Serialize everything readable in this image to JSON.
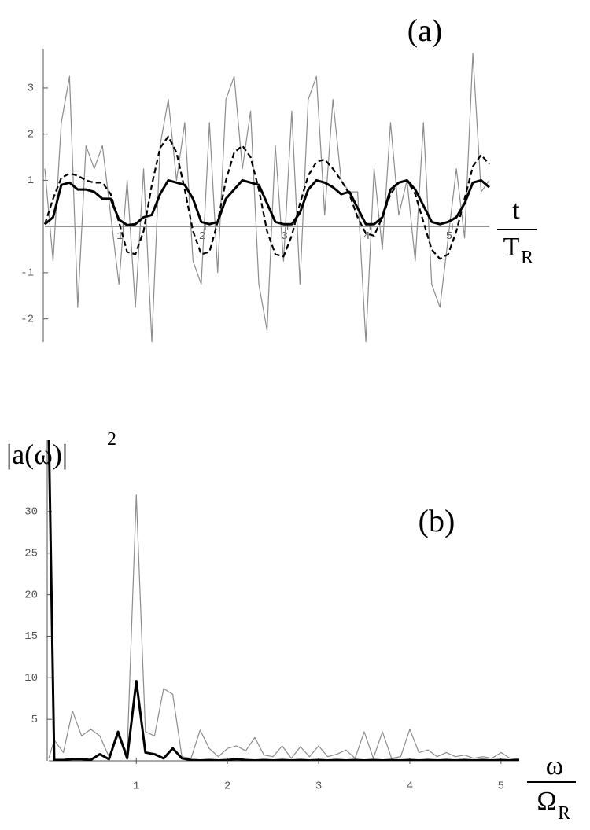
{
  "chart_data": [
    {
      "type": "line",
      "annotation": "(a)",
      "xlabel_top": "t",
      "xlabel_bottom": "T",
      "xlabel_sub": "R",
      "xlim": [
        0.05,
        5.45
      ],
      "ylim": [
        -2.5,
        3.85
      ],
      "xticks": [
        1,
        2,
        3,
        4,
        5
      ],
      "yticks": [
        -2,
        -1,
        1,
        2,
        3
      ],
      "grid": false,
      "x": [
        0.05,
        0.15,
        0.25,
        0.35,
        0.45,
        0.55,
        0.65,
        0.75,
        0.85,
        0.95,
        1.05,
        1.15,
        1.25,
        1.35,
        1.45,
        1.55,
        1.65,
        1.75,
        1.85,
        1.95,
        2.05,
        2.15,
        2.25,
        2.35,
        2.45,
        2.55,
        2.65,
        2.75,
        2.85,
        2.95,
        3.05,
        3.15,
        3.25,
        3.35,
        3.45,
        3.55,
        3.65,
        3.75,
        3.85,
        3.95,
        4.05,
        4.15,
        4.25,
        4.35,
        4.45,
        4.55,
        4.65,
        4.75,
        4.85,
        4.95,
        5.05,
        5.15,
        5.25,
        5.35,
        5.45
      ],
      "series": [
        {
          "color": "#8c8c8c",
          "width": 1.2,
          "style": "solid",
          "values": [
            1.25,
            -0.75,
            2.25,
            3.25,
            -1.75,
            1.75,
            1.25,
            1.75,
            0.25,
            -1.25,
            1.0,
            -1.75,
            1.25,
            -2.5,
            1.75,
            2.75,
            1.0,
            2.25,
            -0.75,
            -1.25,
            2.25,
            -1.0,
            2.75,
            3.25,
            1.25,
            2.5,
            -1.25,
            -2.25,
            1.75,
            -0.75,
            2.5,
            -1.25,
            2.75,
            3.25,
            0.25,
            2.75,
            1.0,
            0.75,
            0.75,
            -2.5,
            1.25,
            -0.5,
            2.25,
            0.25,
            1.0,
            -0.75,
            2.25,
            -1.25,
            -1.75,
            -0.25,
            1.25,
            -0.25,
            3.75,
            0.75,
            1.0
          ]
        },
        {
          "color": "#000000",
          "width": 2.2,
          "style": "dashed",
          "values": [
            0.05,
            0.6,
            1.05,
            1.15,
            1.1,
            1.0,
            0.95,
            0.95,
            0.7,
            0.1,
            -0.55,
            -0.6,
            -0.1,
            0.9,
            1.7,
            1.95,
            1.6,
            0.8,
            -0.1,
            -0.6,
            -0.55,
            0.1,
            1.0,
            1.6,
            1.75,
            1.5,
            0.8,
            -0.1,
            -0.6,
            -0.65,
            -0.2,
            0.5,
            1.1,
            1.4,
            1.45,
            1.25,
            1.0,
            0.7,
            0.2,
            -0.15,
            -0.2,
            0.2,
            0.7,
            0.95,
            1.0,
            0.7,
            0.1,
            -0.5,
            -0.7,
            -0.6,
            -0.1,
            0.6,
            1.3,
            1.55,
            1.35
          ]
        },
        {
          "color": "#000000",
          "width": 3,
          "style": "solid",
          "values": [
            0.05,
            0.2,
            0.9,
            0.95,
            0.8,
            0.8,
            0.75,
            0.6,
            0.6,
            0.15,
            0.03,
            0.05,
            0.2,
            0.25,
            0.7,
            1.0,
            0.95,
            0.9,
            0.6,
            0.1,
            0.05,
            0.1,
            0.6,
            0.8,
            1.0,
            0.95,
            0.9,
            0.5,
            0.1,
            0.05,
            0.05,
            0.3,
            0.8,
            1.0,
            0.95,
            0.85,
            0.7,
            0.75,
            0.4,
            0.05,
            0.05,
            0.2,
            0.8,
            0.95,
            1.0,
            0.8,
            0.45,
            0.1,
            0.05,
            0.1,
            0.2,
            0.5,
            0.95,
            1.0,
            0.85
          ]
        }
      ]
    },
    {
      "type": "line",
      "annotation": "(b)",
      "ylabel": "|a(ω)|",
      "ylabel_sup": "2",
      "xlabel_top": "ω",
      "xlabel_bottom": "Ω",
      "xlabel_sub": "R",
      "xlim": [
        0.04,
        5.2
      ],
      "ylim": [
        0,
        38.6
      ],
      "xticks": [
        1,
        2,
        3,
        4,
        5
      ],
      "yticks": [
        5,
        10,
        15,
        20,
        25,
        30
      ],
      "grid": false,
      "x": [
        0.04,
        0.1,
        0.2,
        0.3,
        0.4,
        0.5,
        0.6,
        0.7,
        0.8,
        0.9,
        1.0,
        1.1,
        1.2,
        1.3,
        1.4,
        1.5,
        1.6,
        1.7,
        1.8,
        1.9,
        2.0,
        2.1,
        2.2,
        2.3,
        2.4,
        2.5,
        2.6,
        2.7,
        2.8,
        2.9,
        3.0,
        3.1,
        3.2,
        3.3,
        3.4,
        3.5,
        3.6,
        3.7,
        3.8,
        3.9,
        4.0,
        4.1,
        4.2,
        4.3,
        4.4,
        4.5,
        4.6,
        4.7,
        4.8,
        4.9,
        5.0,
        5.1,
        5.2
      ],
      "series": [
        {
          "color": "#8c8c8c",
          "width": 1.2,
          "style": "solid",
          "values": [
            0.3,
            2.5,
            1.0,
            6.0,
            3.0,
            3.8,
            3.0,
            0.5,
            3.0,
            1.0,
            32,
            3.5,
            3.0,
            8.7,
            8.0,
            0.5,
            0.3,
            3.7,
            1.5,
            0.5,
            1.5,
            1.8,
            1.2,
            2.8,
            0.7,
            0.5,
            1.8,
            0.3,
            1.7,
            0.5,
            1.8,
            0.5,
            0.8,
            1.3,
            0.3,
            3.5,
            0.3,
            3.5,
            0.3,
            0.5,
            3.8,
            1.0,
            1.3,
            0.5,
            1.0,
            0.5,
            0.7,
            0.3,
            0.5,
            0.3,
            1.0,
            0.3,
            0.2
          ]
        },
        {
          "color": "#000000",
          "width": 3,
          "style": "solid",
          "values": [
            40,
            0.1,
            0.1,
            0.2,
            0.2,
            0.1,
            0.8,
            0.2,
            3.5,
            0.3,
            9.6,
            1.0,
            0.8,
            0.3,
            1.5,
            0.3,
            0.1,
            0.05,
            0.1,
            0.05,
            0.1,
            0.2,
            0.1,
            0.05,
            0.1,
            0.05,
            0.1,
            0.05,
            0.1,
            0.05,
            0.1,
            0.05,
            0.1,
            0.05,
            0.1,
            0.05,
            0.1,
            0.05,
            0.1,
            0.05,
            0.1,
            0.05,
            0.1,
            0.05,
            0.1,
            0.05,
            0.1,
            0.05,
            0.1,
            0.05,
            0.1,
            0.05,
            0.1
          ]
        }
      ]
    }
  ]
}
